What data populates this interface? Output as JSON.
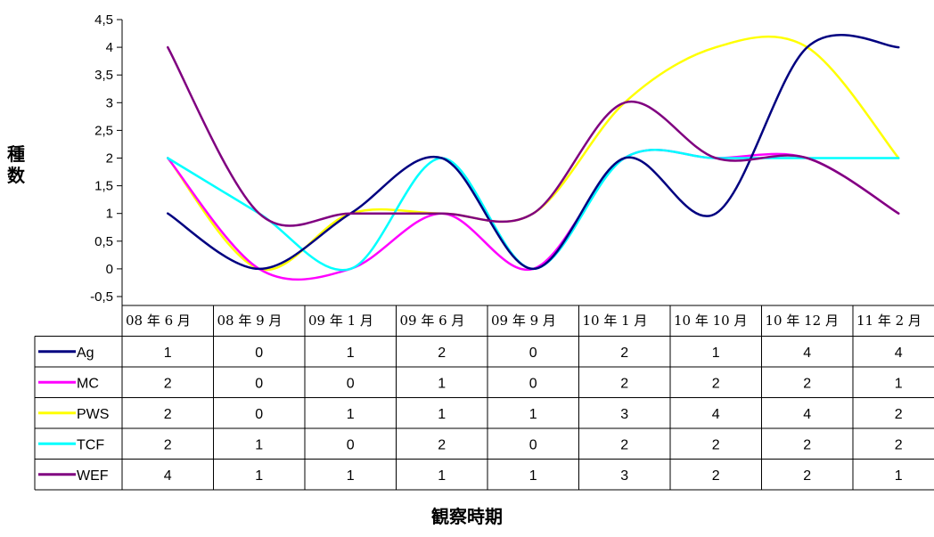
{
  "chart_data": {
    "type": "line",
    "ylabel": "種数",
    "xlabel": "観察時期",
    "ylim": [
      -0.5,
      4.5
    ],
    "yticks": [
      "4,5",
      "4",
      "3,5",
      "3",
      "2,5",
      "2",
      "1,5",
      "1",
      "0,5",
      "0",
      "-0,5"
    ],
    "ytick_values": [
      4.5,
      4,
      3.5,
      3,
      2.5,
      2,
      1.5,
      1,
      0.5,
      0,
      -0.5
    ],
    "categories": [
      "08 年 6 月",
      "08 年 9 月",
      "09 年 1 月",
      "09 年 6 月",
      "09 年 9 月",
      "10 年 1 月",
      "10 年 10 月",
      "10 年 12 月",
      "11 年 2 月"
    ],
    "series": [
      {
        "name": "Ag",
        "color": "#000080",
        "values": [
          1,
          0,
          1,
          2,
          0,
          2,
          1,
          4,
          4
        ]
      },
      {
        "name": "MC",
        "color": "#ff00ff",
        "values": [
          2,
          0,
          0,
          1,
          0,
          2,
          2,
          2,
          1
        ]
      },
      {
        "name": "PWS",
        "color": "#ffff00",
        "values": [
          2,
          0,
          1,
          1,
          1,
          3,
          4,
          4,
          2
        ]
      },
      {
        "name": "TCF",
        "color": "#00ffff",
        "values": [
          2,
          1,
          0,
          2,
          0,
          2,
          2,
          2,
          2
        ]
      },
      {
        "name": "WEF",
        "color": "#800080",
        "values": [
          4,
          1,
          1,
          1,
          1,
          3,
          2,
          2,
          1
        ]
      }
    ],
    "smooth": true,
    "grid": false,
    "legend": "data-table"
  }
}
